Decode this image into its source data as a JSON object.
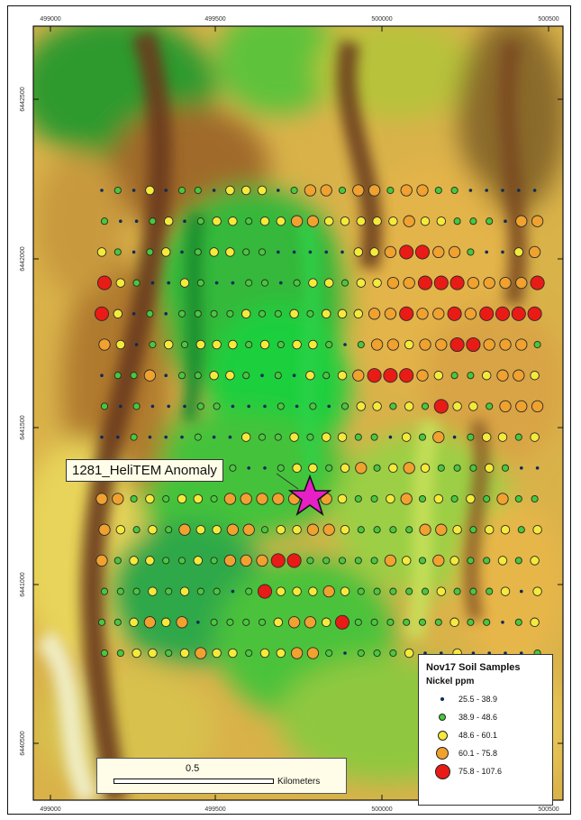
{
  "map": {
    "x_ticks": [
      "499000",
      "499500",
      "500000",
      "500500"
    ],
    "y_ticks": [
      "6442500",
      "6442000",
      "6441500",
      "6441000",
      "6440500"
    ],
    "anomaly_label": "1281_HeliTEM Anomaly",
    "anomaly_marker": "star-icon",
    "anomaly_color": "#e81fc6"
  },
  "legend": {
    "title": "Nov17 Soil Samples",
    "subtitle": "Nickel ppm",
    "classes": [
      {
        "label": "25.5 - 38.9",
        "color": "#0b2a5a"
      },
      {
        "label": "38.9 - 48.6",
        "color": "#47c93a"
      },
      {
        "label": "48.6 - 60.1",
        "color": "#f5ea3a"
      },
      {
        "label": "60.1 - 75.8",
        "color": "#f0a12e"
      },
      {
        "label": "75.8 - 107.6",
        "color": "#e81b16"
      }
    ]
  },
  "scale_bar": {
    "value": "0.5",
    "unit": "Kilometers"
  },
  "samples": {
    "rows": [
      "0102011022201331331331100000",
      "1001201221223322222322111033",
      "2101201221100000223443310023",
      "4210021001101221223344433334",
      "4201011112112122233433434444",
      "3201212221212210133233443331",
      "0113011221010212344432112332",
      "1010001100010101221214221333",
      "0010001002112122110213012212",
      "2321212110012212312321112100",
      "3312122133333332112312121311",
      "3212132233122332111133212212",
      "3122112133344111113213211212",
      "1112121101422232111112111202",
      "1123230111123324111111211012",
      "1122123221223310111200200001"
    ]
  }
}
